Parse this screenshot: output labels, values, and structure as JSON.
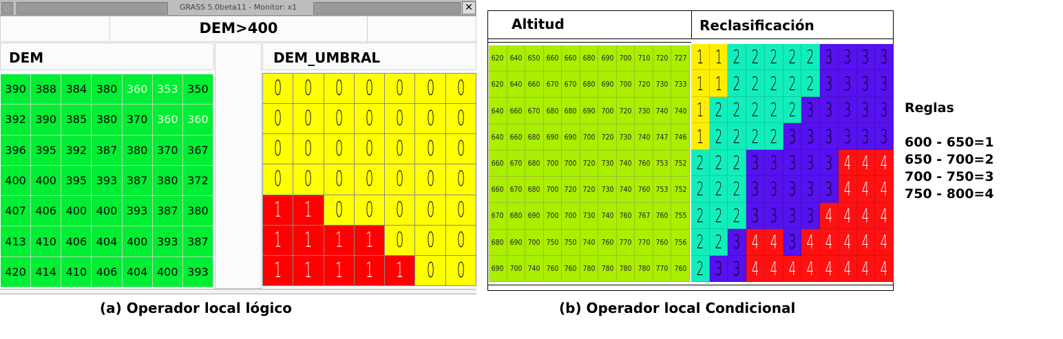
{
  "window": {
    "title": "GRASS 5.0beta11 - Monitor: x1",
    "close_glyph": "✕"
  },
  "panel_a": {
    "expression": "DEM>400",
    "left_label": "DEM",
    "right_label": "DEM_UMBRAL",
    "caption": "(a) Operador local lógico",
    "dem_values": [
      [
        "390",
        "388",
        "384",
        "380",
        "360",
        "353",
        "350"
      ],
      [
        "392",
        "390",
        "385",
        "380",
        "370",
        "360",
        "360"
      ],
      [
        "396",
        "395",
        "392",
        "387",
        "380",
        "370",
        "367"
      ],
      [
        "400",
        "400",
        "395",
        "393",
        "387",
        "380",
        "372"
      ],
      [
        "407",
        "406",
        "400",
        "400",
        "393",
        "387",
        "380"
      ],
      [
        "413",
        "410",
        "406",
        "404",
        "400",
        "393",
        "387"
      ],
      [
        "420",
        "414",
        "410",
        "406",
        "404",
        "400",
        "393"
      ]
    ],
    "umbral_values": [
      [
        "0",
        "0",
        "0",
        "0",
        "0",
        "0",
        "0"
      ],
      [
        "0",
        "0",
        "0",
        "0",
        "0",
        "0",
        "0"
      ],
      [
        "0",
        "0",
        "0",
        "0",
        "0",
        "0",
        "0"
      ],
      [
        "0",
        "0",
        "0",
        "0",
        "0",
        "0",
        "0"
      ],
      [
        "1",
        "1",
        "0",
        "0",
        "0",
        "0",
        "0"
      ],
      [
        "1",
        "1",
        "1",
        "1",
        "0",
        "0",
        "0"
      ],
      [
        "1",
        "1",
        "1",
        "1",
        "1",
        "0",
        "0"
      ]
    ]
  },
  "panel_b": {
    "left_label": "Altitud",
    "right_label": "Reclasificación",
    "caption": "(b) Operador local Condicional",
    "altitud_values": [
      [
        "620",
        "640",
        "650",
        "660",
        "660",
        "680",
        "690",
        "700",
        "710",
        "720",
        "727"
      ],
      [
        "620",
        "640",
        "660",
        "670",
        "670",
        "680",
        "690",
        "700",
        "720",
        "730",
        "733"
      ],
      [
        "640",
        "660",
        "670",
        "680",
        "680",
        "690",
        "700",
        "720",
        "730",
        "740",
        "740"
      ],
      [
        "640",
        "660",
        "680",
        "690",
        "690",
        "700",
        "720",
        "730",
        "740",
        "747",
        "746"
      ],
      [
        "660",
        "670",
        "680",
        "700",
        "700",
        "720",
        "730",
        "740",
        "760",
        "753",
        "752"
      ],
      [
        "660",
        "670",
        "680",
        "700",
        "720",
        "720",
        "730",
        "740",
        "760",
        "753",
        "752"
      ],
      [
        "670",
        "680",
        "690",
        "700",
        "700",
        "730",
        "740",
        "760",
        "767",
        "760",
        "755"
      ],
      [
        "680",
        "690",
        "700",
        "750",
        "750",
        "740",
        "760",
        "770",
        "770",
        "760",
        "756"
      ],
      [
        "690",
        "700",
        "740",
        "760",
        "760",
        "780",
        "780",
        "780",
        "780",
        "770",
        "760"
      ]
    ],
    "reclass_values": [
      [
        "1",
        "1",
        "2",
        "2",
        "2",
        "2",
        "2",
        "3",
        "3",
        "3",
        "3"
      ],
      [
        "1",
        "1",
        "2",
        "2",
        "2",
        "2",
        "2",
        "3",
        "3",
        "3",
        "3"
      ],
      [
        "1",
        "2",
        "2",
        "2",
        "2",
        "2",
        "3",
        "3",
        "3",
        "3",
        "3"
      ],
      [
        "1",
        "2",
        "2",
        "2",
        "2",
        "3",
        "3",
        "3",
        "3",
        "3",
        "3"
      ],
      [
        "2",
        "2",
        "2",
        "3",
        "3",
        "3",
        "3",
        "3",
        "4",
        "4",
        "4"
      ],
      [
        "2",
        "2",
        "2",
        "3",
        "3",
        "3",
        "3",
        "3",
        "4",
        "4",
        "4"
      ],
      [
        "2",
        "2",
        "2",
        "3",
        "3",
        "3",
        "3",
        "4",
        "4",
        "4",
        "4"
      ],
      [
        "2",
        "2",
        "3",
        "4",
        "4",
        "3",
        "4",
        "4",
        "4",
        "4",
        "4"
      ],
      [
        "2",
        "3",
        "3",
        "4",
        "4",
        "4",
        "4",
        "4",
        "4",
        "4",
        "4"
      ]
    ]
  },
  "rules": {
    "title": "Reglas",
    "items": [
      "600 - 650=1",
      "650 - 700=2",
      "700 - 750=3",
      "750 - 800=4"
    ]
  },
  "colors": {
    "dem_green": "#00ee33",
    "dem_light_text": "#e8ffe8",
    "umbral_0": "#ffff00",
    "umbral_1": "#ff0000",
    "altitud": "#aaee00",
    "class_1": "#ffee00",
    "class_2": "#11eebb",
    "class_3": "#5511ee",
    "class_4": "#ff1111"
  }
}
